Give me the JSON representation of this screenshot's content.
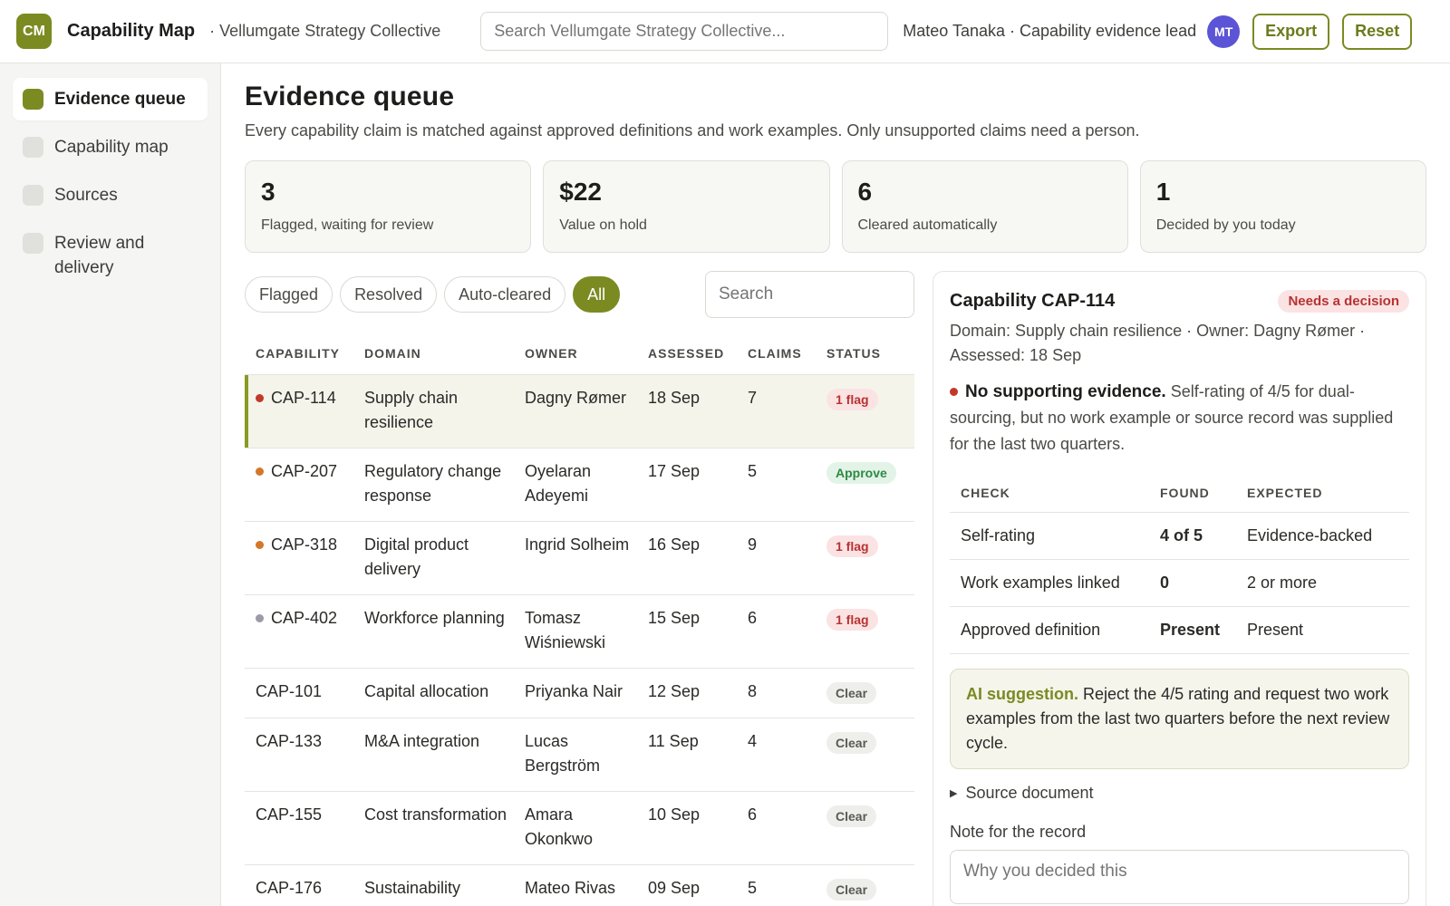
{
  "header": {
    "logo_text": "CM",
    "app_title": "Capability Map",
    "org": "· Vellumgate Strategy Collective",
    "search_placeholder": "Search Vellumgate Strategy Collective...",
    "user": "Mateo Tanaka · Capability evidence lead",
    "avatar_initials": "MT",
    "export_label": "Export",
    "reset_label": "Reset"
  },
  "sidebar": {
    "items": [
      {
        "label": "Evidence queue",
        "active": true
      },
      {
        "label": "Capability map",
        "active": false
      },
      {
        "label": "Sources",
        "active": false
      },
      {
        "label": "Review and delivery",
        "active": false
      }
    ]
  },
  "main": {
    "title": "Evidence queue",
    "subtitle": "Every capability claim is matched against approved definitions and work examples. Only unsupported claims need a person.",
    "stats": [
      {
        "value": "3",
        "label": "Flagged, waiting for review"
      },
      {
        "value": "$22",
        "label": "Value on hold"
      },
      {
        "value": "6",
        "label": "Cleared automatically"
      },
      {
        "value": "1",
        "label": "Decided by you today"
      }
    ],
    "filters": [
      "Flagged",
      "Resolved",
      "Auto-cleared",
      "All"
    ],
    "active_filter": "All",
    "search_placeholder": "Search",
    "table": {
      "headers": [
        "CAPABILITY",
        "DOMAIN",
        "OWNER",
        "ASSESSED",
        "CLAIMS",
        "STATUS"
      ],
      "rows": [
        {
          "id": "CAP-114",
          "domain": "Supply chain resilience",
          "owner": "Dagny Rømer",
          "assessed": "18 Sep",
          "claims": "7",
          "status": "1 flag",
          "kind": "flag",
          "dot": "#c0392b",
          "selected": true
        },
        {
          "id": "CAP-207",
          "domain": "Regulatory change response",
          "owner": "Oyelaran Adeyemi",
          "assessed": "17 Sep",
          "claims": "5",
          "status": "Approve",
          "kind": "approve",
          "dot": "#d4772a",
          "selected": false
        },
        {
          "id": "CAP-318",
          "domain": "Digital product delivery",
          "owner": "Ingrid Solheim",
          "assessed": "16 Sep",
          "claims": "9",
          "status": "1 flag",
          "kind": "flag",
          "dot": "#d4772a",
          "selected": false
        },
        {
          "id": "CAP-402",
          "domain": "Workforce planning",
          "owner": "Tomasz Wiśniewski",
          "assessed": "15 Sep",
          "claims": "6",
          "status": "1 flag",
          "kind": "flag",
          "dot": "#9a9aa8",
          "selected": false
        },
        {
          "id": "CAP-101",
          "domain": "Capital allocation",
          "owner": "Priyanka Nair",
          "assessed": "12 Sep",
          "claims": "8",
          "status": "Clear",
          "kind": "clear",
          "dot": "",
          "selected": false
        },
        {
          "id": "CAP-133",
          "domain": "M&A integration",
          "owner": "Lucas Bergström",
          "assessed": "11 Sep",
          "claims": "4",
          "status": "Clear",
          "kind": "clear",
          "dot": "",
          "selected": false
        },
        {
          "id": "CAP-155",
          "domain": "Cost transformation",
          "owner": "Amara Okonkwo",
          "assessed": "10 Sep",
          "claims": "6",
          "status": "Clear",
          "kind": "clear",
          "dot": "",
          "selected": false
        },
        {
          "id": "CAP-176",
          "domain": "Sustainability",
          "owner": "Mateo Rivas",
          "assessed": "09 Sep",
          "claims": "5",
          "status": "Clear",
          "kind": "clear",
          "dot": "",
          "selected": false
        }
      ]
    }
  },
  "detail": {
    "title": "Capability CAP-114",
    "badge": "Needs a decision",
    "meta": "Domain: Supply chain resilience · Owner: Dagny Rømer · Assessed: 18 Sep",
    "finding_title": "No supporting evidence.",
    "finding_text": "Self-rating of 4/5 for dual-sourcing, but no work example or source record was supplied for the last two quarters.",
    "checks_headers": [
      "CHECK",
      "FOUND",
      "EXPECTED"
    ],
    "checks": [
      {
        "check": "Self-rating",
        "found": "4 of 5",
        "found_state": "bad",
        "expected": "Evidence-backed"
      },
      {
        "check": "Work examples linked",
        "found": "0",
        "found_state": "bad",
        "expected": "2 or more"
      },
      {
        "check": "Approved definition",
        "found": "Present",
        "found_state": "good",
        "expected": "Present"
      }
    ],
    "ai_label": "AI suggestion.",
    "ai_text": "Reject the 4/5 rating and request two work examples from the last two quarters before the next review cycle.",
    "source_label": "Source document",
    "note_label": "Note for the record",
    "note_placeholder": "Why you decided this"
  }
}
